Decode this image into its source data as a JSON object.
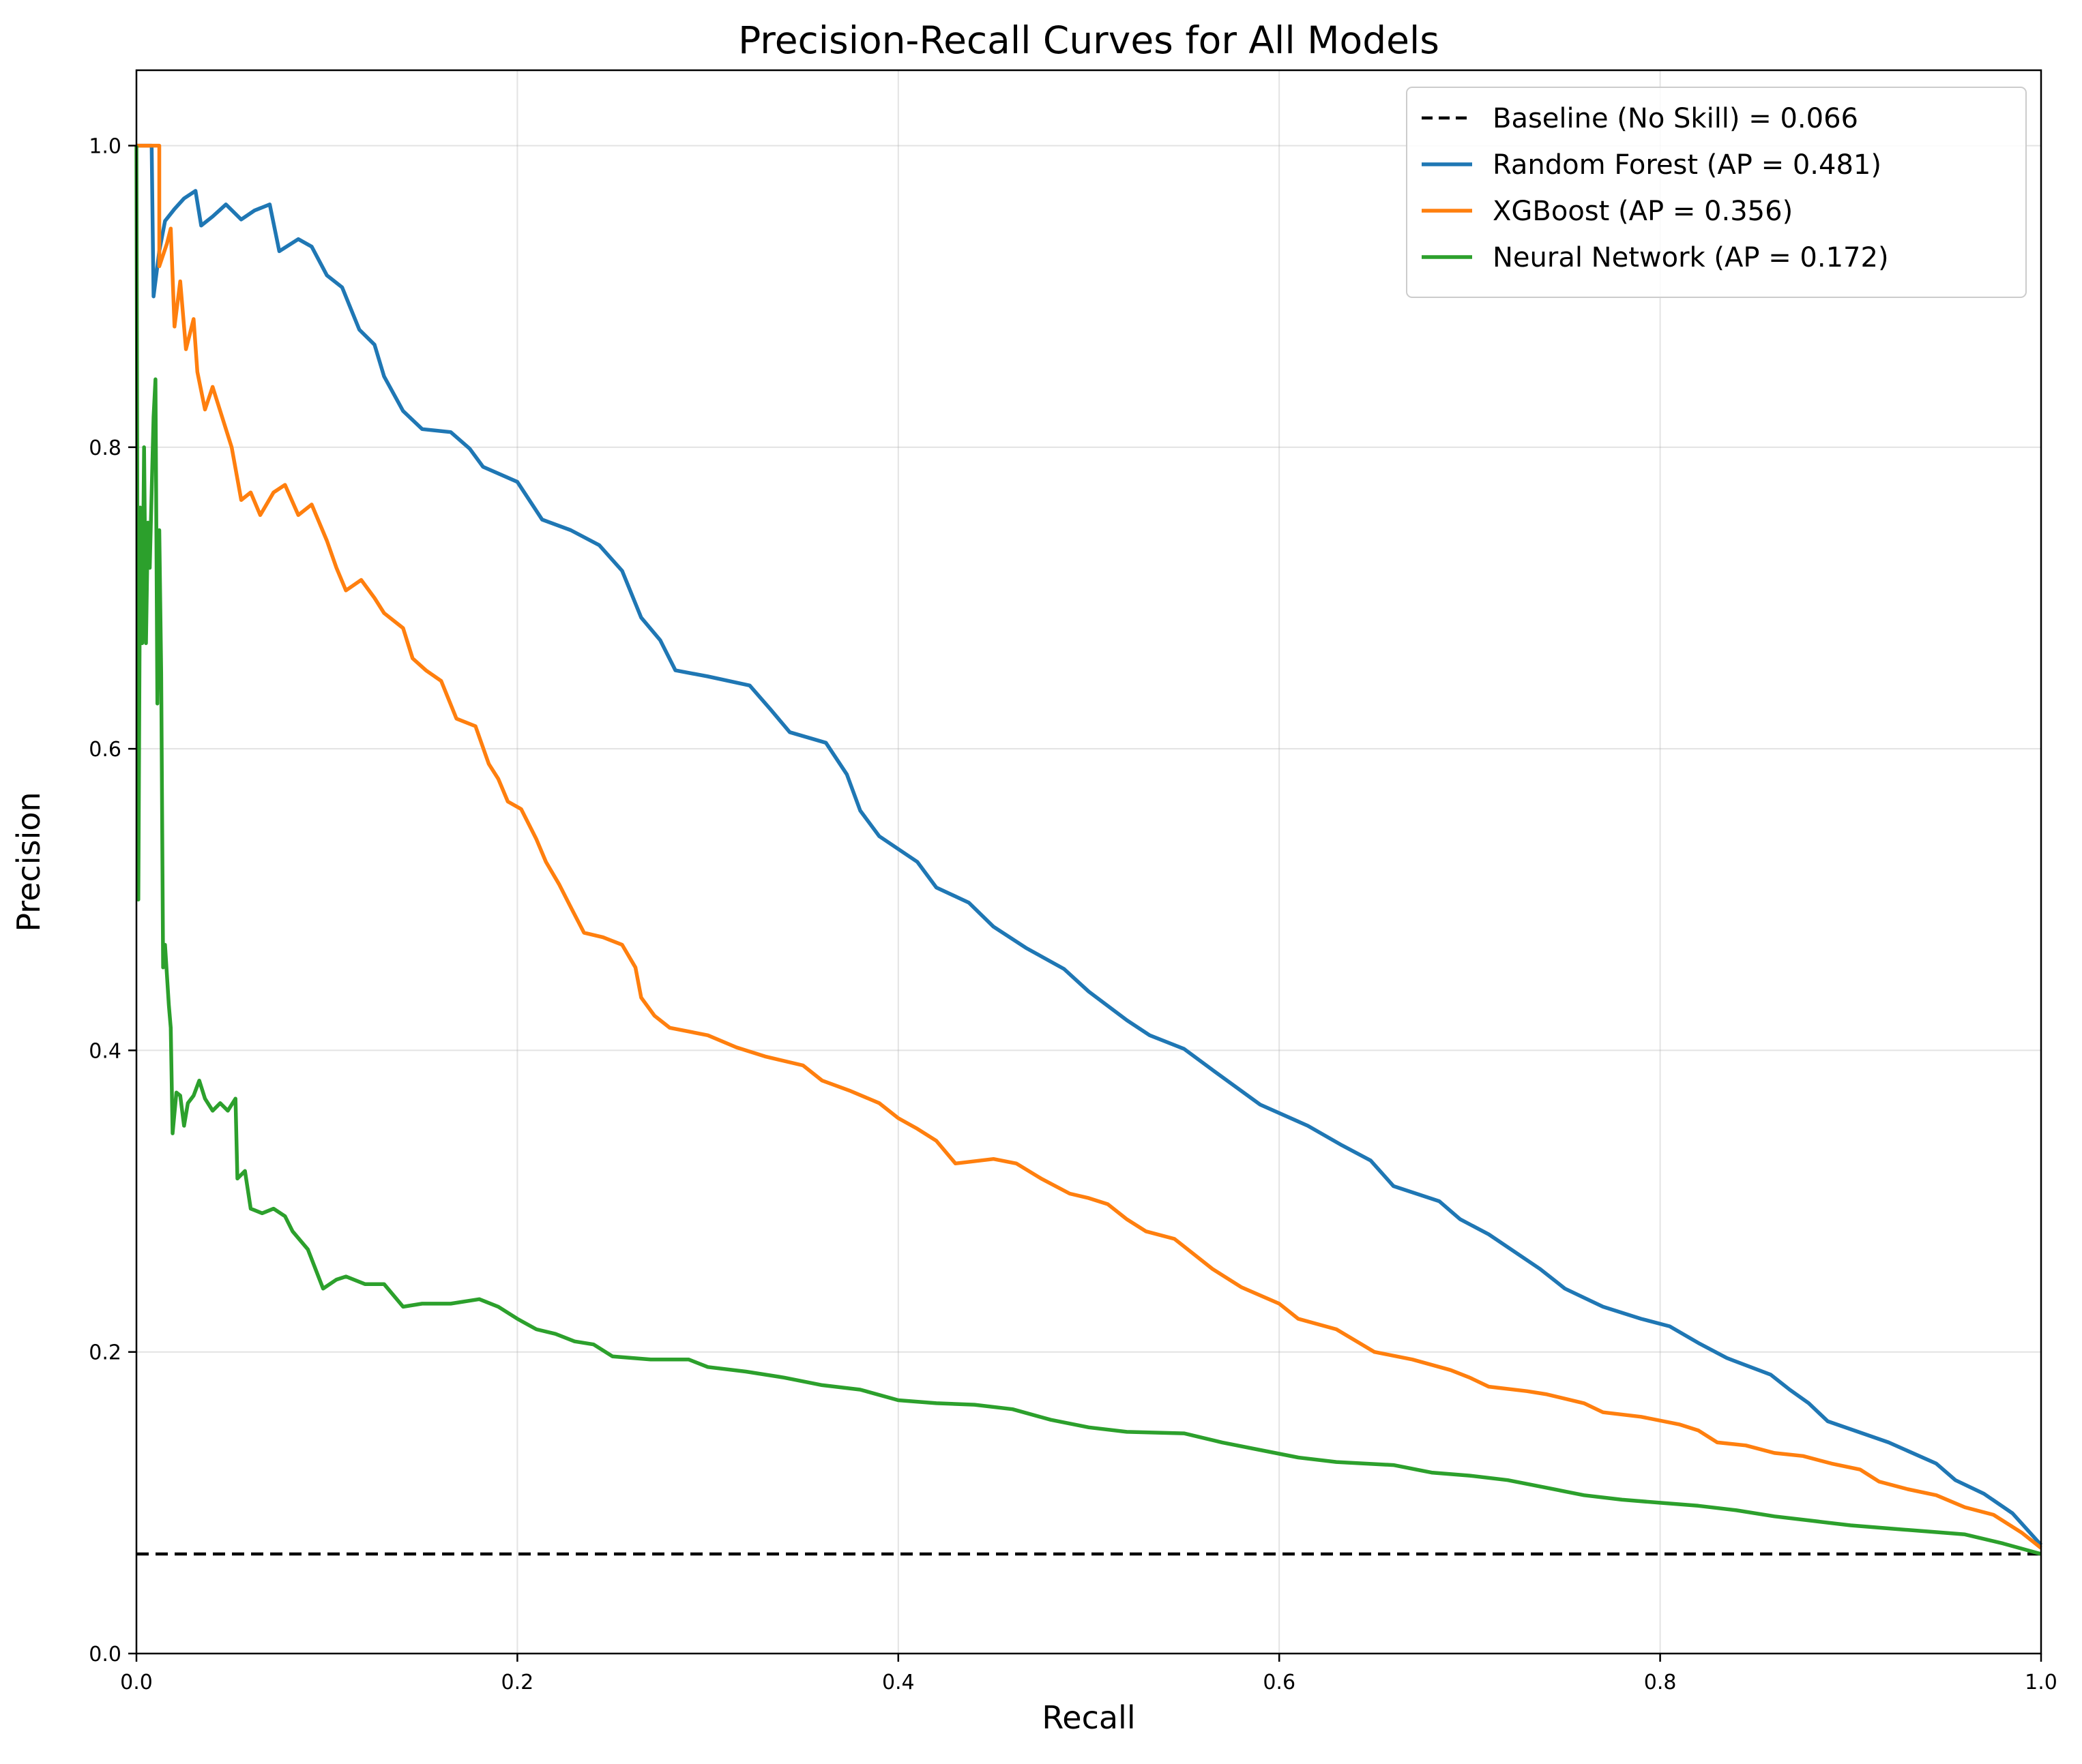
{
  "chart_data": {
    "type": "line",
    "title": "Precision-Recall Curves for All Models",
    "xlabel": "Recall",
    "ylabel": "Precision",
    "xlim": [
      0.0,
      1.0
    ],
    "ylim": [
      0.0,
      1.05
    ],
    "xticks": [
      "0.0",
      "0.2",
      "0.4",
      "0.6",
      "0.8",
      "1.0"
    ],
    "yticks": [
      "0.0",
      "0.2",
      "0.4",
      "0.6",
      "0.8",
      "1.0"
    ],
    "grid": true,
    "legend_position": "upper-right",
    "baseline": {
      "name": "Baseline (No Skill) = 0.066",
      "value": 0.066,
      "color": "#000000",
      "style": "dashed"
    },
    "series": [
      {
        "name": "Random Forest (AP = 0.481)",
        "color": "#1f77b4",
        "points": [
          [
            0.0,
            1.0
          ],
          [
            0.008,
            1.0
          ],
          [
            0.009,
            0.9
          ],
          [
            0.012,
            0.93
          ],
          [
            0.015,
            0.95
          ],
          [
            0.02,
            0.958
          ],
          [
            0.025,
            0.965
          ],
          [
            0.031,
            0.97
          ],
          [
            0.034,
            0.947
          ],
          [
            0.04,
            0.953
          ],
          [
            0.047,
            0.961
          ],
          [
            0.055,
            0.951
          ],
          [
            0.062,
            0.957
          ],
          [
            0.07,
            0.961
          ],
          [
            0.075,
            0.93
          ],
          [
            0.085,
            0.938
          ],
          [
            0.092,
            0.933
          ],
          [
            0.1,
            0.914
          ],
          [
            0.108,
            0.906
          ],
          [
            0.117,
            0.878
          ],
          [
            0.125,
            0.868
          ],
          [
            0.13,
            0.847
          ],
          [
            0.14,
            0.824
          ],
          [
            0.15,
            0.812
          ],
          [
            0.165,
            0.81
          ],
          [
            0.175,
            0.799
          ],
          [
            0.182,
            0.787
          ],
          [
            0.2,
            0.777
          ],
          [
            0.213,
            0.752
          ],
          [
            0.228,
            0.745
          ],
          [
            0.243,
            0.735
          ],
          [
            0.255,
            0.718
          ],
          [
            0.265,
            0.687
          ],
          [
            0.275,
            0.672
          ],
          [
            0.283,
            0.652
          ],
          [
            0.3,
            0.648
          ],
          [
            0.322,
            0.642
          ],
          [
            0.333,
            0.626
          ],
          [
            0.343,
            0.611
          ],
          [
            0.362,
            0.604
          ],
          [
            0.373,
            0.583
          ],
          [
            0.38,
            0.559
          ],
          [
            0.39,
            0.542
          ],
          [
            0.41,
            0.525
          ],
          [
            0.42,
            0.508
          ],
          [
            0.437,
            0.498
          ],
          [
            0.45,
            0.482
          ],
          [
            0.467,
            0.468
          ],
          [
            0.487,
            0.454
          ],
          [
            0.5,
            0.439
          ],
          [
            0.52,
            0.42
          ],
          [
            0.532,
            0.41
          ],
          [
            0.55,
            0.401
          ],
          [
            0.565,
            0.387
          ],
          [
            0.59,
            0.364
          ],
          [
            0.615,
            0.35
          ],
          [
            0.633,
            0.337
          ],
          [
            0.648,
            0.327
          ],
          [
            0.66,
            0.31
          ],
          [
            0.684,
            0.3
          ],
          [
            0.695,
            0.288
          ],
          [
            0.71,
            0.278
          ],
          [
            0.737,
            0.255
          ],
          [
            0.75,
            0.242
          ],
          [
            0.77,
            0.23
          ],
          [
            0.79,
            0.222
          ],
          [
            0.805,
            0.217
          ],
          [
            0.82,
            0.206
          ],
          [
            0.835,
            0.196
          ],
          [
            0.858,
            0.185
          ],
          [
            0.868,
            0.175
          ],
          [
            0.878,
            0.166
          ],
          [
            0.888,
            0.154
          ],
          [
            0.92,
            0.14
          ],
          [
            0.945,
            0.126
          ],
          [
            0.955,
            0.115
          ],
          [
            0.97,
            0.106
          ],
          [
            0.985,
            0.093
          ],
          [
            1.0,
            0.072
          ]
        ]
      },
      {
        "name": "XGBoost (AP = 0.356)",
        "color": "#ff7f0e",
        "points": [
          [
            0.0,
            1.0
          ],
          [
            0.012,
            1.0
          ],
          [
            0.012,
            0.92
          ],
          [
            0.016,
            0.935
          ],
          [
            0.018,
            0.945
          ],
          [
            0.02,
            0.88
          ],
          [
            0.023,
            0.91
          ],
          [
            0.026,
            0.865
          ],
          [
            0.03,
            0.885
          ],
          [
            0.032,
            0.85
          ],
          [
            0.036,
            0.825
          ],
          [
            0.04,
            0.84
          ],
          [
            0.045,
            0.82
          ],
          [
            0.05,
            0.8
          ],
          [
            0.055,
            0.765
          ],
          [
            0.06,
            0.77
          ],
          [
            0.065,
            0.755
          ],
          [
            0.072,
            0.77
          ],
          [
            0.078,
            0.775
          ],
          [
            0.085,
            0.755
          ],
          [
            0.092,
            0.762
          ],
          [
            0.1,
            0.738
          ],
          [
            0.105,
            0.72
          ],
          [
            0.11,
            0.705
          ],
          [
            0.118,
            0.712
          ],
          [
            0.125,
            0.7
          ],
          [
            0.13,
            0.69
          ],
          [
            0.14,
            0.68
          ],
          [
            0.145,
            0.66
          ],
          [
            0.152,
            0.652
          ],
          [
            0.16,
            0.645
          ],
          [
            0.168,
            0.62
          ],
          [
            0.178,
            0.615
          ],
          [
            0.185,
            0.59
          ],
          [
            0.19,
            0.58
          ],
          [
            0.195,
            0.565
          ],
          [
            0.202,
            0.56
          ],
          [
            0.21,
            0.54
          ],
          [
            0.215,
            0.525
          ],
          [
            0.222,
            0.51
          ],
          [
            0.228,
            0.495
          ],
          [
            0.235,
            0.478
          ],
          [
            0.245,
            0.475
          ],
          [
            0.255,
            0.47
          ],
          [
            0.262,
            0.455
          ],
          [
            0.265,
            0.435
          ],
          [
            0.272,
            0.423
          ],
          [
            0.28,
            0.415
          ],
          [
            0.3,
            0.41
          ],
          [
            0.315,
            0.402
          ],
          [
            0.33,
            0.396
          ],
          [
            0.35,
            0.39
          ],
          [
            0.36,
            0.38
          ],
          [
            0.375,
            0.373
          ],
          [
            0.39,
            0.365
          ],
          [
            0.4,
            0.355
          ],
          [
            0.41,
            0.348
          ],
          [
            0.42,
            0.34
          ],
          [
            0.43,
            0.325
          ],
          [
            0.45,
            0.328
          ],
          [
            0.462,
            0.325
          ],
          [
            0.475,
            0.315
          ],
          [
            0.49,
            0.305
          ],
          [
            0.5,
            0.302
          ],
          [
            0.51,
            0.298
          ],
          [
            0.52,
            0.288
          ],
          [
            0.53,
            0.28
          ],
          [
            0.545,
            0.275
          ],
          [
            0.555,
            0.265
          ],
          [
            0.565,
            0.255
          ],
          [
            0.58,
            0.243
          ],
          [
            0.6,
            0.232
          ],
          [
            0.61,
            0.222
          ],
          [
            0.63,
            0.215
          ],
          [
            0.65,
            0.2
          ],
          [
            0.67,
            0.195
          ],
          [
            0.69,
            0.188
          ],
          [
            0.7,
            0.183
          ],
          [
            0.71,
            0.177
          ],
          [
            0.73,
            0.174
          ],
          [
            0.74,
            0.172
          ],
          [
            0.76,
            0.166
          ],
          [
            0.77,
            0.16
          ],
          [
            0.79,
            0.157
          ],
          [
            0.81,
            0.152
          ],
          [
            0.82,
            0.148
          ],
          [
            0.83,
            0.14
          ],
          [
            0.845,
            0.138
          ],
          [
            0.86,
            0.133
          ],
          [
            0.875,
            0.131
          ],
          [
            0.89,
            0.126
          ],
          [
            0.905,
            0.122
          ],
          [
            0.915,
            0.114
          ],
          [
            0.93,
            0.109
          ],
          [
            0.945,
            0.105
          ],
          [
            0.96,
            0.097
          ],
          [
            0.975,
            0.092
          ],
          [
            0.99,
            0.08
          ],
          [
            1.0,
            0.07
          ]
        ]
      },
      {
        "name": "Neural Network (AP = 0.172)",
        "color": "#2ca02c",
        "points": [
          [
            0.0,
            1.0
          ],
          [
            0.001,
            0.5
          ],
          [
            0.002,
            0.76
          ],
          [
            0.003,
            0.67
          ],
          [
            0.004,
            0.8
          ],
          [
            0.005,
            0.67
          ],
          [
            0.006,
            0.75
          ],
          [
            0.007,
            0.72
          ],
          [
            0.008,
            0.77
          ],
          [
            0.009,
            0.82
          ],
          [
            0.01,
            0.845
          ],
          [
            0.011,
            0.63
          ],
          [
            0.012,
            0.745
          ],
          [
            0.013,
            0.65
          ],
          [
            0.014,
            0.455
          ],
          [
            0.015,
            0.47
          ],
          [
            0.016,
            0.45
          ],
          [
            0.017,
            0.43
          ],
          [
            0.018,
            0.415
          ],
          [
            0.019,
            0.345
          ],
          [
            0.021,
            0.372
          ],
          [
            0.023,
            0.37
          ],
          [
            0.025,
            0.35
          ],
          [
            0.027,
            0.365
          ],
          [
            0.03,
            0.37
          ],
          [
            0.033,
            0.38
          ],
          [
            0.036,
            0.368
          ],
          [
            0.04,
            0.36
          ],
          [
            0.044,
            0.365
          ],
          [
            0.048,
            0.36
          ],
          [
            0.052,
            0.368
          ],
          [
            0.053,
            0.315
          ],
          [
            0.057,
            0.32
          ],
          [
            0.06,
            0.295
          ],
          [
            0.066,
            0.292
          ],
          [
            0.072,
            0.295
          ],
          [
            0.078,
            0.29
          ],
          [
            0.082,
            0.28
          ],
          [
            0.09,
            0.268
          ],
          [
            0.098,
            0.242
          ],
          [
            0.105,
            0.248
          ],
          [
            0.11,
            0.25
          ],
          [
            0.12,
            0.245
          ],
          [
            0.13,
            0.245
          ],
          [
            0.14,
            0.23
          ],
          [
            0.15,
            0.232
          ],
          [
            0.165,
            0.232
          ],
          [
            0.18,
            0.235
          ],
          [
            0.19,
            0.23
          ],
          [
            0.2,
            0.222
          ],
          [
            0.21,
            0.215
          ],
          [
            0.22,
            0.212
          ],
          [
            0.23,
            0.207
          ],
          [
            0.24,
            0.205
          ],
          [
            0.25,
            0.197
          ],
          [
            0.27,
            0.195
          ],
          [
            0.29,
            0.195
          ],
          [
            0.3,
            0.19
          ],
          [
            0.32,
            0.187
          ],
          [
            0.34,
            0.183
          ],
          [
            0.36,
            0.178
          ],
          [
            0.38,
            0.175
          ],
          [
            0.4,
            0.168
          ],
          [
            0.42,
            0.166
          ],
          [
            0.44,
            0.165
          ],
          [
            0.46,
            0.162
          ],
          [
            0.48,
            0.155
          ],
          [
            0.5,
            0.15
          ],
          [
            0.52,
            0.147
          ],
          [
            0.55,
            0.146
          ],
          [
            0.57,
            0.14
          ],
          [
            0.59,
            0.135
          ],
          [
            0.61,
            0.13
          ],
          [
            0.63,
            0.127
          ],
          [
            0.66,
            0.125
          ],
          [
            0.68,
            0.12
          ],
          [
            0.7,
            0.118
          ],
          [
            0.72,
            0.115
          ],
          [
            0.74,
            0.11
          ],
          [
            0.76,
            0.105
          ],
          [
            0.78,
            0.102
          ],
          [
            0.8,
            0.1
          ],
          [
            0.82,
            0.098
          ],
          [
            0.84,
            0.095
          ],
          [
            0.86,
            0.091
          ],
          [
            0.88,
            0.088
          ],
          [
            0.9,
            0.085
          ],
          [
            0.92,
            0.083
          ],
          [
            0.94,
            0.081
          ],
          [
            0.96,
            0.079
          ],
          [
            0.98,
            0.073
          ],
          [
            1.0,
            0.066
          ]
        ]
      }
    ]
  }
}
